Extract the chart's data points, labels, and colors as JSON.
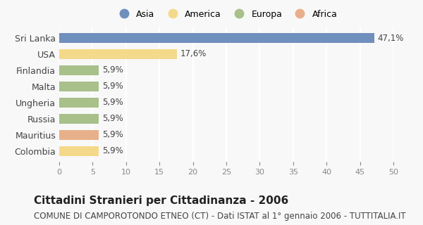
{
  "categories": [
    "Sri Lanka",
    "USA",
    "Finlandia",
    "Malta",
    "Ungheria",
    "Russia",
    "Mauritius",
    "Colombia"
  ],
  "values": [
    47.1,
    17.6,
    5.9,
    5.9,
    5.9,
    5.9,
    5.9,
    5.9
  ],
  "labels": [
    "47,1%",
    "17,6%",
    "5,9%",
    "5,9%",
    "5,9%",
    "5,9%",
    "5,9%",
    "5,9%"
  ],
  "colors": [
    "#6f8fbd",
    "#f5d98b",
    "#a8c08a",
    "#a8c08a",
    "#a8c08a",
    "#a8c08a",
    "#e8b08a",
    "#f5d98b"
  ],
  "legend": [
    {
      "label": "Asia",
      "color": "#6f8fbd"
    },
    {
      "label": "America",
      "color": "#f5d98b"
    },
    {
      "label": "Europa",
      "color": "#a8c08a"
    },
    {
      "label": "Africa",
      "color": "#e8b08a"
    }
  ],
  "xlim": [
    0,
    50
  ],
  "xticks": [
    0,
    5,
    10,
    15,
    20,
    25,
    30,
    35,
    40,
    45,
    50
  ],
  "title": "Cittadini Stranieri per Cittadinanza - 2006",
  "subtitle": "COMUNE DI CAMPOROTONDO ETNEO (CT) - Dati ISTAT al 1° gennaio 2006 - TUTTITALIA.IT",
  "background_color": "#f8f8f8",
  "grid_color": "#ffffff",
  "bar_label_fontsize": 8.5,
  "title_fontsize": 11,
  "subtitle_fontsize": 8.5
}
